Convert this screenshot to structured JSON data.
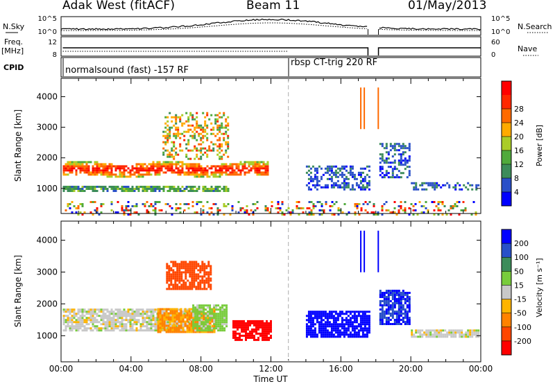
{
  "header": {
    "station": "Adak West (fitACF)",
    "beam": "Beam 11",
    "date": "01/May/2013"
  },
  "left_labels": {
    "nsky": "N.Sky",
    "freq": "Freq.",
    "freq_unit": "[MHz]",
    "cpid": "CPID"
  },
  "right_labels": {
    "nsearch": "N.Search",
    "nave": "Nave"
  },
  "strip_ticks": {
    "noise_left": [
      "10^5",
      "10^0"
    ],
    "noise_right": [
      "10^5",
      "10^0"
    ],
    "freq_left": [
      "12",
      "8"
    ],
    "nave_right": [
      "60",
      "0"
    ]
  },
  "cpid_modes": [
    "normalsound (fast) -157 RF",
    "rbsp CT-trig 220 RF"
  ],
  "colors": {
    "power_scale": [
      "#0000ff",
      "#2a50c8",
      "#3c8c5a",
      "#50aa3c",
      "#aacc28",
      "#ffaa00",
      "#ff6a00",
      "#ff2800",
      "#ff0000"
    ],
    "velocity_scale": [
      "#0000ff",
      "#2850c8",
      "#3c8c5a",
      "#78cc3c",
      "#c8c8c8",
      "#ffb400",
      "#ff8200",
      "#ff4600",
      "#ff0000"
    ]
  },
  "chart_data": [
    {
      "type": "heatmap",
      "title": "",
      "xlabel": "Time UT",
      "ylabel": "Slant Range [km]",
      "x_ticks": [
        "00:00",
        "04:00",
        "08:00",
        "12:00",
        "16:00",
        "20:00",
        "00:00"
      ],
      "y_ticks": [
        "1000",
        "2000",
        "3000",
        "4000"
      ],
      "ylim": [
        180,
        4600
      ],
      "colorbar": {
        "label": "Power [dB]",
        "ticks": [
          "4",
          "8",
          "12",
          "16",
          "20",
          "24",
          "28"
        ],
        "range": [
          0,
          32
        ]
      },
      "echo_regions": [
        {
          "t0": 0.1,
          "t1": 11.8,
          "r0": 1350,
          "r1": 1950,
          "level": "high"
        },
        {
          "t0": 0.1,
          "t1": 9.6,
          "r0": 950,
          "r1": 1150,
          "level": "medium"
        },
        {
          "t0": 5.8,
          "t1": 9.5,
          "r0": 2000,
          "r1": 3500,
          "level": "patchy"
        },
        {
          "t0": 14.0,
          "t1": 17.6,
          "r0": 1000,
          "r1": 1800,
          "level": "low"
        },
        {
          "t0": 18.2,
          "t1": 19.9,
          "r0": 1400,
          "r1": 2500,
          "level": "low"
        },
        {
          "t0": 20.0,
          "t1": 23.9,
          "r0": 1000,
          "r1": 1250,
          "level": "low"
        },
        {
          "t0": 0.1,
          "t1": 23.9,
          "r0": 180,
          "r1": 650,
          "level": "clutter"
        }
      ]
    },
    {
      "type": "heatmap",
      "title": "",
      "xlabel": "Time UT",
      "ylabel": "Slant Range [km]",
      "x_ticks": [
        "00:00",
        "04:00",
        "08:00",
        "12:00",
        "16:00",
        "20:00",
        "00:00"
      ],
      "y_ticks": [
        "1000",
        "2000",
        "3000",
        "4000"
      ],
      "ylim": [
        180,
        4600
      ],
      "colorbar": {
        "label": "Velocity [m s⁻¹]",
        "ticks": [
          "200",
          "100",
          "50",
          "15",
          "-15",
          "-50",
          "-100",
          "-200"
        ],
        "range": [
          -250,
          250
        ]
      },
      "echo_regions": [
        {
          "t0": 0.1,
          "t1": 8.0,
          "r0": 1200,
          "r1": 1900,
          "velocity": 0
        },
        {
          "t0": 5.5,
          "t1": 8.8,
          "r0": 1150,
          "r1": 1900,
          "velocity": -60
        },
        {
          "t0": 7.5,
          "t1": 9.5,
          "r0": 1200,
          "r1": 2000,
          "velocity": 30
        },
        {
          "t0": 9.8,
          "t1": 12.0,
          "r0": 900,
          "r1": 1500,
          "velocity": -220
        },
        {
          "t0": 6.0,
          "t1": 8.5,
          "r0": 2500,
          "r1": 3400,
          "velocity": -150
        },
        {
          "t0": 14.0,
          "t1": 17.6,
          "r0": 1000,
          "r1": 1800,
          "velocity": 220
        },
        {
          "t0": 18.2,
          "t1": 19.9,
          "r0": 1400,
          "r1": 2500,
          "velocity": 200
        },
        {
          "t0": 20.0,
          "t1": 23.9,
          "r0": 1000,
          "r1": 1250,
          "velocity": 0
        }
      ]
    }
  ]
}
